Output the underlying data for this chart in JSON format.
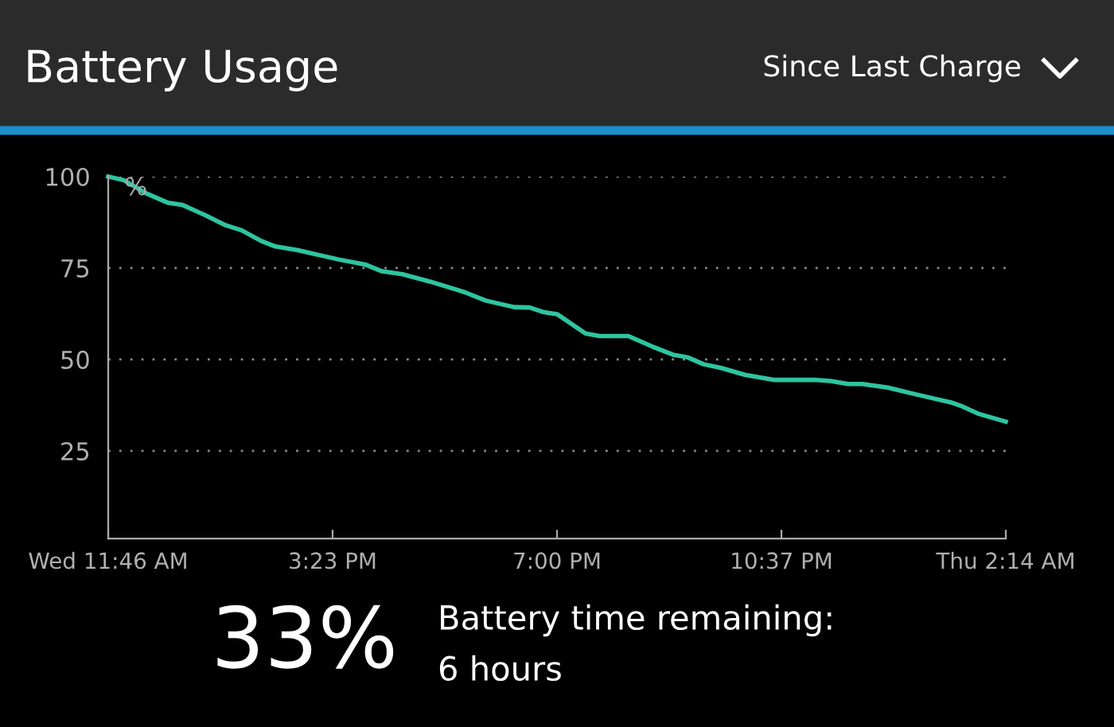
{
  "chart_data": {
    "type": "line",
    "title": "Battery Usage",
    "subtitle": "Since Last Charge",
    "ylabel": "%",
    "x": [
      11.767,
      12.02,
      12.38,
      12.72,
      12.97,
      13.31,
      13.66,
      13.92,
      14.23,
      14.46,
      14.82,
      15.15,
      15.49,
      15.92,
      16.18,
      16.51,
      16.95,
      17.38,
      17.54,
      17.85,
      18.31,
      18.56,
      18.79,
      19.0,
      19.46,
      19.69,
      20.15,
      20.54,
      20.87,
      21.1,
      21.36,
      21.64,
      22.03,
      22.51,
      23.18,
      23.41,
      23.69,
      23.92,
      24.33,
      24.72,
      25.08,
      25.34,
      25.54,
      25.8,
      26.233
    ],
    "series": [
      {
        "color": "#2ec4a0",
        "values": [
          100,
          99,
          95.4,
          92.9,
          92.2,
          89.6,
          86.7,
          85.3,
          82.4,
          80.9,
          79.9,
          78.6,
          77.3,
          75.9,
          74.1,
          73.3,
          71.3,
          69.1,
          68.2,
          66.1,
          64.3,
          64.2,
          62.9,
          62.4,
          57.1,
          56.4,
          56.4,
          53.5,
          51.3,
          50.6,
          48.7,
          47.7,
          45.8,
          44.4,
          44.4,
          44.1,
          43.3,
          43.3,
          42.3,
          40.7,
          39.3,
          38.3,
          37.1,
          35.1,
          33
        ]
      }
    ],
    "xlim": [
      11.767,
      26.233
    ],
    "xticks": [
      {
        "value": 11.767,
        "label": "Wed 11:46 AM"
      },
      {
        "value": 15.383,
        "label": "3:23 PM"
      },
      {
        "value": 19.0,
        "label": "7:00 PM"
      },
      {
        "value": 22.617,
        "label": "10:37 PM"
      },
      {
        "value": 26.233,
        "label": "Thu 2:14 AM"
      }
    ],
    "ylim": [
      1,
      100
    ],
    "yticks": [
      25,
      50,
      75,
      100
    ],
    "grid": "y",
    "marker": "none",
    "line_style": "solid",
    "legend": false,
    "annotations": [
      "33%",
      "Battery time remaining:",
      "6 hours"
    ]
  }
}
